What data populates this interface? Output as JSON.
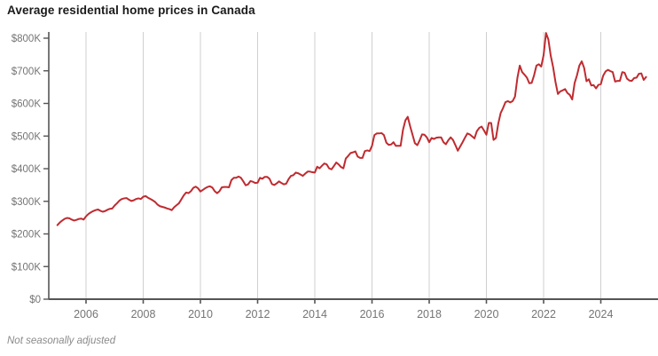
{
  "title": "Average residential home prices in Canada",
  "footnote": "Not seasonally adjusted",
  "colors": {
    "line": "#bf2b30",
    "axis": "#555555",
    "grid": "#cfcfcf",
    "tick_label": "#757575",
    "title_text": "#1a1a1a",
    "footnote_text": "#8a8a8a",
    "background": "#ffffff"
  },
  "chart_data": {
    "type": "line",
    "title": "Average residential home prices in Canada",
    "subtitle": "Not seasonally adjusted",
    "xlabel": "",
    "ylabel": "",
    "legend": "none",
    "grid": "vertical-only",
    "ylim": [
      0,
      800
    ],
    "xlim": [
      2004.75,
      2025.95
    ],
    "y_tick_labels": [
      "$0",
      "$100K",
      "$200K",
      "$300K",
      "$400K",
      "$500K",
      "$600K",
      "$700K",
      "$800K"
    ],
    "y_tick_values": [
      0,
      100,
      200,
      300,
      400,
      500,
      600,
      700,
      800
    ],
    "x_tick_labels": [
      "2006",
      "2008",
      "2010",
      "2012",
      "2014",
      "2016",
      "2018",
      "2020",
      "2022",
      "2024"
    ],
    "unit": "CAD thousands",
    "series": [
      {
        "name": "Average residential home price",
        "start_year": 2005,
        "start_month": 1,
        "frequency": "monthly",
        "values": [
          227,
          235,
          241,
          246,
          249,
          248,
          244,
          241,
          243,
          246,
          247,
          244,
          254,
          261,
          266,
          270,
          273,
          275,
          271,
          268,
          270,
          274,
          277,
          278,
          287,
          294,
          302,
          307,
          309,
          310,
          305,
          301,
          303,
          307,
          309,
          307,
          314,
          316,
          311,
          307,
          303,
          298,
          290,
          285,
          283,
          281,
          278,
          276,
          273,
          282,
          288,
          294,
          306,
          318,
          327,
          325,
          331,
          341,
          345,
          340,
          330,
          335,
          340,
          344,
          346,
          342,
          331,
          325,
          331,
          343,
          344,
          344,
          343,
          365,
          372,
          372,
          376,
          372,
          361,
          349,
          352,
          362,
          360,
          356,
          357,
          372,
          369,
          375,
          375,
          369,
          353,
          350,
          355,
          361,
          356,
          352,
          354,
          368,
          378,
          380,
          388,
          386,
          382,
          378,
          385,
          391,
          391,
          389,
          388,
          406,
          401,
          409,
          416,
          413,
          401,
          398,
          408,
          419,
          413,
          405,
          401,
          431,
          439,
          448,
          450,
          453,
          437,
          433,
          433,
          454,
          456,
          454,
          470,
          503,
          508,
          508,
          509,
          503,
          480,
          473,
          474,
          481,
          470,
          470,
          470,
          519,
          548,
          559,
          530,
          504,
          478,
          472,
          487,
          505,
          504,
          496,
          481,
          494,
          491,
          495,
          496,
          496,
          481,
          475,
          487,
          496,
          488,
          472,
          455,
          468,
          481,
          495,
          508,
          505,
          499,
          493,
          515,
          525,
          529,
          517,
          504,
          540,
          540,
          488,
          494,
          539,
          571,
          586,
          604,
          607,
          603,
          607,
          621,
          678,
          716,
          696,
          688,
          679,
          662,
          663,
          686,
          716,
          720,
          713,
          748,
          816,
          796,
          746,
          711,
          665,
          629,
          637,
          640,
          644,
          632,
          626,
          612,
          662,
          686,
          716,
          729,
          709,
          668,
          674,
          655,
          656,
          646,
          657,
          659,
          685,
          698,
          703,
          699,
          696,
          667,
          669,
          669,
          696,
          694,
          676,
          670,
          669,
          678,
          679,
          691,
          692,
          672,
          681
        ]
      }
    ]
  }
}
